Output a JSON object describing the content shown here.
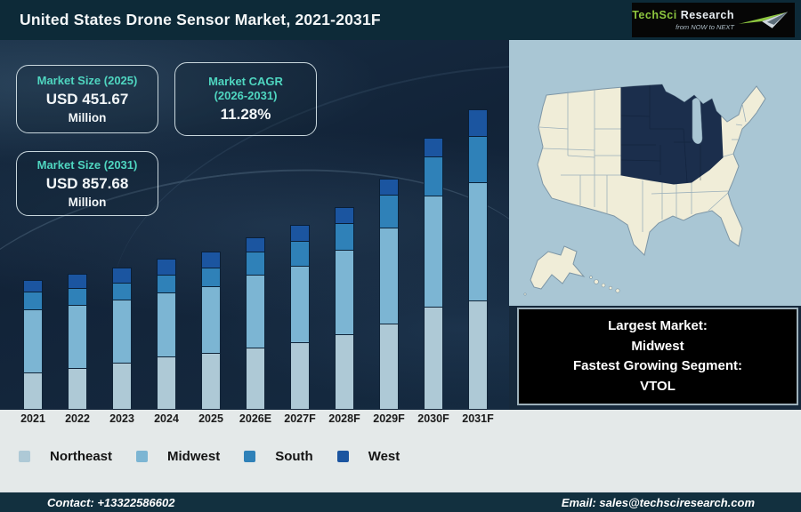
{
  "header": {
    "title": "United States Drone Sensor Market, 2021-2031F",
    "logo": {
      "brand_primary": "TechSci",
      "brand_secondary": "Research",
      "tagline": "from NOW to NEXT",
      "brand_green": "#8dc63f"
    }
  },
  "stats": {
    "market_size_2025": {
      "label": "Market Size (2025)",
      "value": "USD 451.67",
      "unit": "Million"
    },
    "market_cagr": {
      "label_line1": "Market CAGR",
      "label_line2": "(2026-2031)",
      "value": "11.28%"
    },
    "market_size_2031": {
      "label": "Market Size (2031)",
      "value": "USD 857.68",
      "unit": "Million"
    }
  },
  "chart_data": {
    "type": "bar",
    "stacked": true,
    "title": "United States Drone Sensor Market, 2021-2031F",
    "unit": "USD Million",
    "categories": [
      "2021",
      "2022",
      "2023",
      "2024",
      "2025",
      "2026E",
      "2027F",
      "2028F",
      "2029F",
      "2030F",
      "2031F"
    ],
    "series": [
      {
        "name": "Northeast",
        "color": "#aec9d6",
        "values": [
          103,
          118,
          131,
          151,
          161,
          174,
          190,
          212,
          243,
          293,
          309
        ]
      },
      {
        "name": "Midwest",
        "color": "#7cb5d3",
        "values": [
          179,
          181,
          180,
          182,
          190,
          207,
          219,
          240,
          275,
          317,
          337
        ]
      },
      {
        "name": "South",
        "color": "#2f81b8",
        "values": [
          50,
          48,
          48,
          50,
          53,
          66,
          70,
          76,
          93,
          112,
          133
        ]
      },
      {
        "name": "West",
        "color": "#1b55a0",
        "values": [
          35,
          44,
          45,
          48,
          48,
          44,
          48,
          49,
          47,
          56,
          79
        ]
      }
    ],
    "totals_estimated": [
      367,
      391,
      404,
      431,
      452,
      491,
      527,
      577,
      658,
      778,
      858
    ],
    "known_totals": {
      "2025": 451.67,
      "2031F": 857.68
    },
    "legend_position": "bottom",
    "axes_visible": false,
    "gridlines": false
  },
  "map": {
    "highlighted_region": "Midwest",
    "colors": {
      "ocean": "#a9c6d4",
      "land": "#f0edd8",
      "state_border": "#8ba3b2",
      "highlight": "#1b2e4c"
    }
  },
  "callout": {
    "lines": [
      "Largest Market:",
      "Midwest",
      "Fastest Growing Segment:",
      "VTOL"
    ]
  },
  "footer": {
    "contact": "Contact: +13322586602",
    "email": "Email: sales@techsciresearch.com"
  }
}
